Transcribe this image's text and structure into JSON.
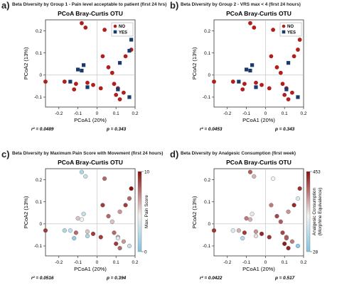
{
  "colors": {
    "no": "#b01e1e",
    "yes": "#1a3a6e",
    "gradient_high": "#8b0d0d",
    "gradient_mid": "#f2f2f2",
    "gradient_low": "#7fc4e0"
  },
  "chart_data": [
    {
      "type": "scatter",
      "panel_label": "a)",
      "panel_title": "Beta Diversity by Group 1 -  Pain level acceptable to patient (first 24 hrs)",
      "title": "PCoA Bray-Curtis OTU",
      "xlabel": "PCoA1 (20%)",
      "ylabel": "PCoA2 (13%)",
      "xlim": [
        -0.27,
        0.2
      ],
      "ylim": [
        -0.145,
        0.25
      ],
      "xticks": [
        -0.2,
        -0.1,
        0,
        0.1,
        0.2
      ],
      "yticks": [
        -0.1,
        0,
        0.1,
        0.2
      ],
      "xtick_labels": [
        "-0.2",
        "-0.1",
        "0",
        "0.1",
        "0.2"
      ],
      "ytick_labels": [
        "-0.1",
        "0",
        "0.1",
        "0.2"
      ],
      "legend": {
        "position": "top-right",
        "entries": [
          "NO",
          "YES"
        ]
      },
      "stats": {
        "r2": "r² = 0.0489",
        "p": "p = 0.343"
      },
      "series": [
        {
          "name": "NO",
          "shape": "circle",
          "points": [
            [
              -0.08,
              0.235
            ],
            [
              -0.06,
              0.215
            ],
            [
              0.04,
              0.205
            ],
            [
              0.03,
              0.085
            ],
            [
              0.15,
              0.085
            ],
            [
              0.18,
              0.115
            ],
            [
              0.06,
              0.035
            ],
            [
              0.08,
              0.01
            ],
            [
              -0.27,
              -0.03
            ],
            [
              -0.17,
              -0.03
            ],
            [
              -0.11,
              -0.04
            ],
            [
              -0.05,
              -0.035
            ],
            [
              -0.02,
              -0.045
            ],
            [
              -0.12,
              -0.065
            ],
            [
              0.02,
              -0.06
            ],
            [
              0.09,
              -0.04
            ],
            [
              0.11,
              -0.06
            ],
            [
              0.1,
              -0.09
            ],
            [
              0.14,
              -0.08
            ],
            [
              0.12,
              -0.11
            ]
          ]
        },
        {
          "name": "YES",
          "shape": "square",
          "points": [
            [
              0.18,
              0.16
            ],
            [
              0.17,
              0.11
            ],
            [
              0.12,
              0.055
            ],
            [
              -0.07,
              0.045
            ],
            [
              -0.08,
              0.02
            ],
            [
              -0.1,
              0.025
            ],
            [
              -0.14,
              -0.03
            ],
            [
              -0.05,
              -0.055
            ],
            [
              0.11,
              -0.065
            ],
            [
              0.17,
              -0.1
            ]
          ]
        }
      ]
    },
    {
      "type": "scatter",
      "panel_label": "b)",
      "panel_title": "Beta Diversity by Group 2 -  VRS max < 4 (first 24 hours)",
      "title": "PCoA Bray-Curtis OTU",
      "xlabel": "PCoA1 (20%)",
      "ylabel": "PCoA2 (13%)",
      "xlim": [
        -0.27,
        0.2
      ],
      "ylim": [
        -0.145,
        0.25
      ],
      "xticks": [
        -0.2,
        -0.1,
        0,
        0.1,
        0.2
      ],
      "yticks": [
        -0.1,
        0,
        0.1,
        0.2
      ],
      "xtick_labels": [
        "-0.2",
        "-0.1",
        "0",
        "0.1",
        "0.2"
      ],
      "ytick_labels": [
        "-0.1",
        "0",
        "0.1",
        "0.2"
      ],
      "legend": {
        "position": "top-right",
        "entries": [
          "NO",
          "YES"
        ]
      },
      "stats": {
        "r2": "r² = 0.0453",
        "p": "p = 0.343"
      },
      "series": [
        {
          "name": "NO",
          "shape": "circle",
          "points": [
            [
              -0.08,
              0.235
            ],
            [
              -0.06,
              0.215
            ],
            [
              0.04,
              0.205
            ],
            [
              0.03,
              0.085
            ],
            [
              0.15,
              0.085
            ],
            [
              0.18,
              0.16
            ],
            [
              0.17,
              0.115
            ],
            [
              0.06,
              0.035
            ],
            [
              0.08,
              0.01
            ],
            [
              -0.27,
              -0.03
            ],
            [
              -0.17,
              -0.03
            ],
            [
              -0.11,
              -0.04
            ],
            [
              -0.05,
              -0.035
            ],
            [
              -0.02,
              -0.045
            ],
            [
              -0.12,
              -0.065
            ],
            [
              0.02,
              -0.06
            ],
            [
              0.09,
              -0.04
            ],
            [
              0.11,
              -0.06
            ],
            [
              0.1,
              -0.09
            ],
            [
              0.14,
              -0.08
            ],
            [
              0.12,
              -0.11
            ]
          ]
        },
        {
          "name": "YES",
          "shape": "square",
          "points": [
            [
              0.12,
              0.055
            ],
            [
              -0.07,
              0.045
            ],
            [
              -0.08,
              0.02
            ],
            [
              -0.1,
              0.025
            ],
            [
              -0.14,
              -0.03
            ],
            [
              -0.05,
              -0.055
            ],
            [
              0.11,
              -0.065
            ],
            [
              0.17,
              -0.1
            ]
          ]
        }
      ]
    },
    {
      "type": "scatter",
      "panel_label": "c)",
      "panel_title": "Beta Diversity by Maximum Pain Score with Movement (first 24 hours)",
      "title": "PCoA Bray-Curtis OTU",
      "xlabel": "PCoA1 (20%)",
      "ylabel": "PCoA2 (13%)",
      "xlim": [
        -0.27,
        0.2
      ],
      "ylim": [
        -0.145,
        0.25
      ],
      "xticks": [
        -0.2,
        -0.1,
        0,
        0.1,
        0.2
      ],
      "yticks": [
        -0.1,
        0,
        0.1,
        0.2
      ],
      "xtick_labels": [
        "-0.2",
        "-0.1",
        "0",
        "0.1",
        "0.2"
      ],
      "ytick_labels": [
        "-0.1",
        "0",
        "0.1",
        "0.2"
      ],
      "colorbar": {
        "title": "Max. Pain Score",
        "max_label": "10",
        "min_label": "0",
        "min": 0,
        "max": 10
      },
      "stats": {
        "r2": "r² = 0.0516",
        "p": "p = 0.394"
      },
      "points": [
        [
          -0.08,
          0.235,
          2
        ],
        [
          -0.06,
          0.215,
          3
        ],
        [
          0.04,
          0.205,
          8
        ],
        [
          0.03,
          0.085,
          9
        ],
        [
          0.15,
          0.085,
          9
        ],
        [
          0.18,
          0.16,
          10
        ],
        [
          0.17,
          0.115,
          8
        ],
        [
          0.12,
          0.055,
          7
        ],
        [
          -0.07,
          0.045,
          3
        ],
        [
          -0.08,
          0.02,
          5
        ],
        [
          -0.1,
          0.025,
          6
        ],
        [
          0.06,
          0.035,
          8
        ],
        [
          0.08,
          0.01,
          6
        ],
        [
          -0.27,
          -0.03,
          9
        ],
        [
          -0.17,
          -0.03,
          2
        ],
        [
          -0.14,
          -0.03,
          3
        ],
        [
          -0.11,
          -0.04,
          8
        ],
        [
          -0.05,
          -0.035,
          6
        ],
        [
          -0.02,
          -0.045,
          9
        ],
        [
          -0.12,
          -0.065,
          1
        ],
        [
          -0.05,
          -0.055,
          2
        ],
        [
          0.02,
          -0.06,
          9
        ],
        [
          0.09,
          -0.04,
          8
        ],
        [
          0.11,
          -0.06,
          7
        ],
        [
          0.11,
          -0.065,
          4
        ],
        [
          0.1,
          -0.09,
          9
        ],
        [
          0.14,
          -0.08,
          7
        ],
        [
          0.12,
          -0.11,
          8
        ],
        [
          0.17,
          -0.1,
          3
        ]
      ]
    },
    {
      "type": "scatter",
      "panel_label": "d)",
      "panel_title": "Beta Diversity by Analgesic Consumption (first week)",
      "title": "PCoA Bray-Curtis OTU",
      "xlabel": "PCoA1 (20%)",
      "ylabel": "PCoA2 (13%)",
      "xlim": [
        -0.27,
        0.2
      ],
      "ylim": [
        -0.145,
        0.25
      ],
      "xticks": [
        -0.2,
        -0.1,
        0,
        0.1,
        0.2
      ],
      "yticks": [
        -0.1,
        0,
        0.1,
        0.2
      ],
      "xtick_labels": [
        "-0.2",
        "-0.1",
        "0",
        "0.1",
        "0.2"
      ],
      "ytick_labels": [
        "-0.1",
        "0",
        "0.1",
        "0.2"
      ],
      "colorbar": {
        "title": "Analgesic Consumption (Morphine Equivalence)",
        "max_label": "453",
        "min_label": "28",
        "min": 28,
        "max": 453
      },
      "stats": {
        "r2": "r² = 0.0422",
        "p": "p = 0.517"
      },
      "points": [
        [
          -0.08,
          0.235,
          380
        ],
        [
          -0.06,
          0.215,
          300
        ],
        [
          0.04,
          0.205,
          240
        ],
        [
          0.03,
          0.085,
          350
        ],
        [
          0.15,
          0.085,
          430
        ],
        [
          0.18,
          0.16,
          420
        ],
        [
          0.17,
          0.115,
          200
        ],
        [
          0.12,
          0.055,
          330
        ],
        [
          -0.07,
          0.045,
          250
        ],
        [
          -0.08,
          0.02,
          300
        ],
        [
          -0.1,
          0.025,
          350
        ],
        [
          0.06,
          0.035,
          400
        ],
        [
          0.08,
          0.01,
          380
        ],
        [
          -0.27,
          -0.03,
          420
        ],
        [
          -0.17,
          -0.03,
          200
        ],
        [
          -0.14,
          -0.03,
          300
        ],
        [
          -0.11,
          -0.04,
          410
        ],
        [
          -0.05,
          -0.035,
          330
        ],
        [
          -0.02,
          -0.045,
          430
        ],
        [
          -0.12,
          -0.065,
          120
        ],
        [
          -0.05,
          -0.055,
          260
        ],
        [
          0.02,
          -0.06,
          420
        ],
        [
          0.09,
          -0.04,
          400
        ],
        [
          0.11,
          -0.06,
          370
        ],
        [
          0.11,
          -0.065,
          380
        ],
        [
          0.1,
          -0.09,
          440
        ],
        [
          0.14,
          -0.08,
          350
        ],
        [
          0.12,
          -0.11,
          430
        ],
        [
          0.17,
          -0.1,
          60
        ]
      ]
    }
  ]
}
